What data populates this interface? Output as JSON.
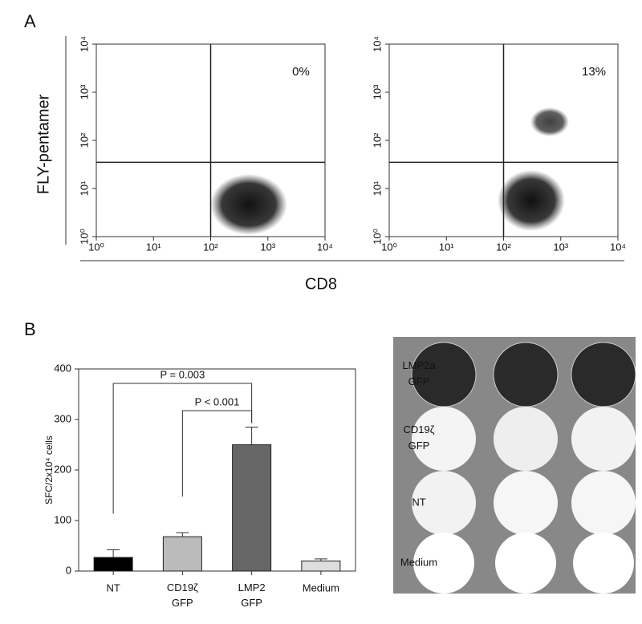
{
  "panel_labels": [
    "A",
    "B"
  ],
  "panel_a": {
    "xlabel": "CD8",
    "ylabel": "FLY-pentamer"
  },
  "chart_data": [
    {
      "type": "scatter",
      "log_x": true,
      "log_y": true,
      "xlim": [
        1,
        10000
      ],
      "ylim": [
        1,
        10000
      ],
      "xticks": [
        {
          "value": 1,
          "label": "10⁰"
        },
        {
          "value": 10,
          "label": "10¹"
        },
        {
          "value": 100,
          "label": "10²"
        },
        {
          "value": 1000,
          "label": "10³"
        },
        {
          "value": 10000,
          "label": "10⁴"
        }
      ],
      "yticks": [
        {
          "value": 1,
          "label": "10⁰"
        },
        {
          "value": 10,
          "label": "10¹"
        },
        {
          "value": 100,
          "label": "10²"
        },
        {
          "value": 1000,
          "label": "10³"
        },
        {
          "value": 10000,
          "label": "10⁴"
        }
      ],
      "gates": {
        "x": 100,
        "y": 35
      },
      "annotation": "0%"
    },
    {
      "type": "scatter",
      "log_x": true,
      "log_y": true,
      "xlim": [
        1,
        10000
      ],
      "ylim": [
        1,
        10000
      ],
      "xticks": [
        {
          "value": 1,
          "label": "10⁰"
        },
        {
          "value": 10,
          "label": "10¹"
        },
        {
          "value": 100,
          "label": "10²"
        },
        {
          "value": 1000,
          "label": "10³"
        },
        {
          "value": 10000,
          "label": "10⁴"
        }
      ],
      "yticks": [
        {
          "value": 1,
          "label": "10⁰"
        },
        {
          "value": 10,
          "label": "10¹"
        },
        {
          "value": 100,
          "label": "10²"
        },
        {
          "value": 1000,
          "label": "10³"
        },
        {
          "value": 10000,
          "label": "10⁴"
        }
      ],
      "gates": {
        "x": 100,
        "y": 35
      },
      "annotation": "13%"
    },
    {
      "type": "bar",
      "ylabel": "SFC/2x10⁴ cells",
      "categories": [
        "NT",
        "CD19ζ GFP",
        "LMP2 GFP",
        "Medium"
      ],
      "values": [
        27,
        68,
        250,
        20
      ],
      "errors": [
        15,
        8,
        35,
        4
      ],
      "colors": [
        "#000000",
        "#bbbbbb",
        "#666666",
        "#dddddd"
      ],
      "ylim": [
        0,
        400
      ],
      "yticks": [
        0,
        100,
        200,
        300,
        400
      ],
      "annotations": [
        "P = 0.003",
        "P < 0.001"
      ]
    }
  ],
  "plate": {
    "row_labels": [
      "LMP2a GFP",
      "CD19ζ GFP",
      "NT",
      "Medium"
    ]
  }
}
